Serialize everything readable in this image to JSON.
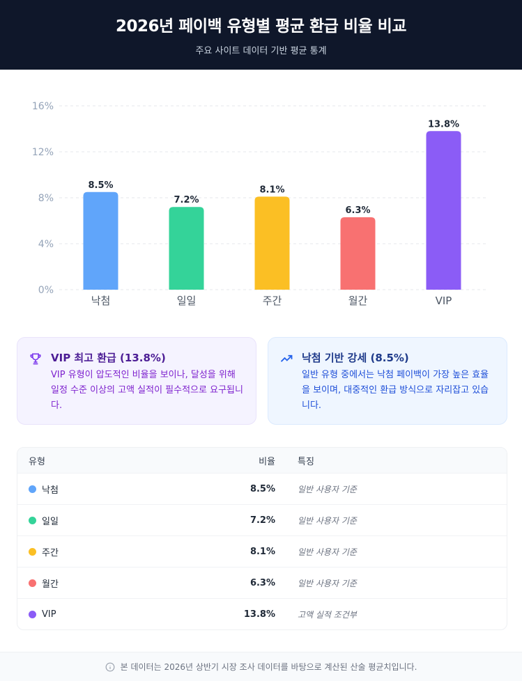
{
  "header": {
    "title": "2026년 페이백 유형별 평균 환급 비율 비교",
    "subtitle": "주요 사이트 데이터 기반 평균 통계"
  },
  "chart_data": {
    "type": "bar",
    "categories": [
      "낙첨",
      "일일",
      "주간",
      "월간",
      "VIP"
    ],
    "values": [
      8.5,
      7.2,
      8.1,
      6.3,
      13.8
    ],
    "data_labels": [
      "8.5%",
      "7.2%",
      "8.1%",
      "6.3%",
      "13.8%"
    ],
    "colors": [
      "#60a5fa",
      "#34d399",
      "#fbbf24",
      "#f87171",
      "#8b5cf6"
    ],
    "yticks": [
      "0%",
      "4%",
      "8%",
      "12%",
      "16%"
    ],
    "ylim": [
      0,
      16
    ],
    "grid": true
  },
  "cards": [
    {
      "icon": "trophy-icon",
      "title": "VIP 최고 환급 (13.8%)",
      "text": "VIP 유형이 압도적인 비율을 보이나, 달성을 위해 일정 수준 이상의 고액 실적이 필수적으로 요구됩니다."
    },
    {
      "icon": "trending-up-icon",
      "title": "낙첨 기반 강세 (8.5%)",
      "text": "일반 유형 중에서는 낙첨 페이백이 가장 높은 효율을 보이며, 대중적인 환급 방식으로 자리잡고 있습니다."
    }
  ],
  "table": {
    "headers": [
      "유형",
      "비율",
      "특징"
    ],
    "rows": [
      {
        "type": "낙첨",
        "rate": "8.5%",
        "note": "일반 사용자 기준",
        "color": "#60a5fa"
      },
      {
        "type": "일일",
        "rate": "7.2%",
        "note": "일반 사용자 기준",
        "color": "#34d399"
      },
      {
        "type": "주간",
        "rate": "8.1%",
        "note": "일반 사용자 기준",
        "color": "#fbbf24"
      },
      {
        "type": "월간",
        "rate": "6.3%",
        "note": "일반 사용자 기준",
        "color": "#f87171"
      },
      {
        "type": "VIP",
        "rate": "13.8%",
        "note": "고액 실적 조건부",
        "color": "#8b5cf6"
      }
    ]
  },
  "footer": {
    "icon": "info-icon",
    "text": "본 데이터는 2026년 상반기 시장 조사 데이터를 바탕으로 계산된 산술 평균치입니다."
  }
}
